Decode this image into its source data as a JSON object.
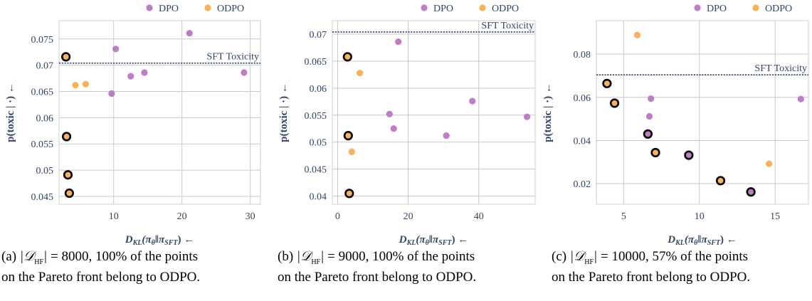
{
  "colors": {
    "dpo": "#c07cc6",
    "odpo": "#f9b15a",
    "axis": "#2f4468",
    "grid": "#c9c9c9",
    "frame": "#cfcfcf",
    "pareto_edge": "#000000",
    "sft_line": "#2f4468"
  },
  "chart_data": [
    {
      "type": "scatter",
      "xlabel": "D_KL(π_θ‖π_SFT) ←",
      "ylabel": "p(toxic | ·) ←",
      "xlim": [
        2,
        31.5
      ],
      "ylim": [
        0.0435,
        0.0785
      ],
      "xticks": [
        10,
        20,
        30
      ],
      "xtick_labels": [
        "10",
        "20",
        "30"
      ],
      "yticks": [
        0.045,
        0.05,
        0.055,
        0.06,
        0.065,
        0.07,
        0.075
      ],
      "ytick_labels": [
        "0.045",
        "0.05",
        "0.055",
        "0.06",
        "0.065",
        "0.07",
        "0.075"
      ],
      "grid": true,
      "legend": {
        "position": "top-right",
        "entries": [
          "DPO",
          "ODPO"
        ]
      },
      "reference_line": {
        "label": "SFT Toxicity",
        "y": 0.0704
      },
      "series": [
        {
          "name": "DPO",
          "points": [
            [
              9.7,
              0.0646
            ],
            [
              10.3,
              0.0731
            ],
            [
              12.5,
              0.0679
            ],
            [
              14.5,
              0.0686
            ],
            [
              21.1,
              0.0761
            ],
            [
              29.1,
              0.0686
            ]
          ],
          "pareto": [
            false,
            false,
            false,
            false,
            false,
            false
          ]
        },
        {
          "name": "ODPO",
          "points": [
            [
              3.0,
              0.0716
            ],
            [
              3.1,
              0.0564
            ],
            [
              3.3,
              0.0491
            ],
            [
              3.5,
              0.0456
            ],
            [
              4.4,
              0.0662
            ],
            [
              5.9,
              0.0664
            ]
          ],
          "pareto": [
            true,
            true,
            true,
            true,
            false,
            false
          ]
        }
      ],
      "caption": {
        "label": "(a)",
        "set": "𝒟",
        "sub": "HF",
        "n": "8000",
        "pct": "100%",
        "line1": "of the points",
        "line2": "on the Pareto front belong to ODPO."
      }
    },
    {
      "type": "scatter",
      "xlabel": "D_KL(π_θ‖π_SFT) ←",
      "ylabel": "p(toxic | ·) ←",
      "xlim": [
        -1.5,
        56
      ],
      "ylim": [
        0.0385,
        0.0725
      ],
      "xticks": [
        0,
        20,
        40
      ],
      "xtick_labels": [
        "0",
        "20",
        "40"
      ],
      "yticks": [
        0.04,
        0.045,
        0.05,
        0.055,
        0.06,
        0.065,
        0.07
      ],
      "ytick_labels": [
        "0.04",
        "0.045",
        "0.05",
        "0.055",
        "0.06",
        "0.065",
        "0.07"
      ],
      "grid": true,
      "legend": {
        "position": "top-right",
        "entries": [
          "DPO",
          "ODPO"
        ]
      },
      "reference_line": {
        "label": "SFT Toxicity",
        "y": 0.0704
      },
      "series": [
        {
          "name": "DPO",
          "points": [
            [
              14.7,
              0.0552
            ],
            [
              15.9,
              0.0525
            ],
            [
              17.2,
              0.0686
            ],
            [
              30.8,
              0.0512
            ],
            [
              38.2,
              0.0576
            ],
            [
              53.7,
              0.0547
            ]
          ],
          "pareto": [
            false,
            false,
            false,
            false,
            false,
            false
          ]
        },
        {
          "name": "ODPO",
          "points": [
            [
              2.8,
              0.0658
            ],
            [
              3.0,
              0.0512
            ],
            [
              3.3,
              0.0405
            ],
            [
              4.0,
              0.0482
            ],
            [
              6.3,
              0.0628
            ]
          ],
          "pareto": [
            true,
            true,
            true,
            false,
            false
          ]
        }
      ],
      "caption": {
        "label": "(b)",
        "set": "𝒟",
        "sub": "HF",
        "n": "9000",
        "pct": "100%",
        "line1": "of the points",
        "line2": "on the Pareto front belong to ODPO."
      }
    },
    {
      "type": "scatter",
      "xlabel": "D_KL(π_θ‖π_SFT) ←",
      "ylabel": "p(toxic | ·) ←",
      "xlim": [
        3.2,
        17.2
      ],
      "ylim": [
        0.0105,
        0.0955
      ],
      "xticks": [
        5,
        10,
        15
      ],
      "xtick_labels": [
        "5",
        "10",
        "15"
      ],
      "yticks": [
        0.02,
        0.04,
        0.06,
        0.08
      ],
      "ytick_labels": [
        "0.02",
        "0.04",
        "0.06",
        "0.08"
      ],
      "grid": true,
      "legend": {
        "position": "top-right",
        "entries": [
          "DPO",
          "ODPO"
        ]
      },
      "reference_line": {
        "label": "SFT Toxicity",
        "y": 0.0704
      },
      "series": [
        {
          "name": "DPO",
          "points": [
            [
              6.6,
              0.043
            ],
            [
              6.7,
              0.0512
            ],
            [
              6.8,
              0.0594
            ],
            [
              9.3,
              0.0332
            ],
            [
              13.4,
              0.0162
            ],
            [
              16.7,
              0.0592
            ]
          ],
          "pareto": [
            true,
            false,
            false,
            true,
            true,
            false
          ]
        },
        {
          "name": "ODPO",
          "points": [
            [
              3.9,
              0.0664
            ],
            [
              4.4,
              0.0573
            ],
            [
              5.9,
              0.0888
            ],
            [
              7.1,
              0.0344
            ],
            [
              11.4,
              0.0214
            ],
            [
              14.6,
              0.0292
            ]
          ],
          "pareto": [
            true,
            true,
            false,
            true,
            true,
            false
          ]
        }
      ],
      "caption": {
        "label": "(c)",
        "set": "𝒟",
        "sub": "HF",
        "n": "10000",
        "pct": "57%",
        "line1": "of the points",
        "line2": "on the Pareto front belong to ODPO."
      }
    }
  ]
}
